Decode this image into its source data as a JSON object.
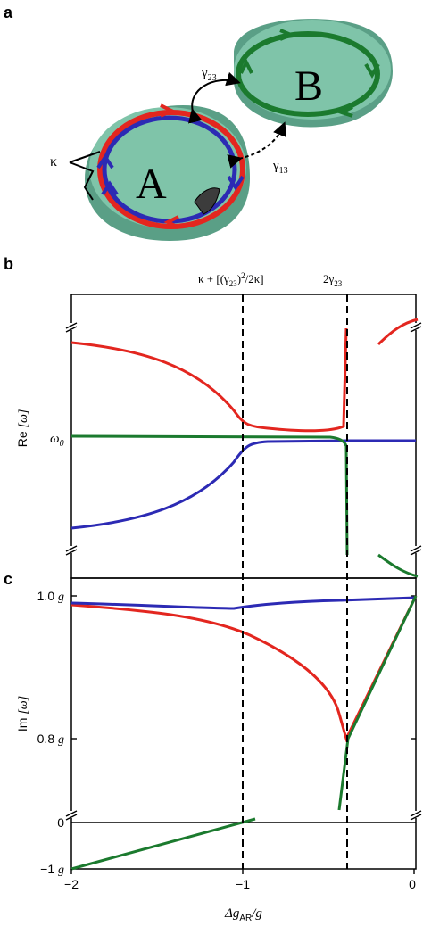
{
  "panel_a": {
    "label": "a",
    "ring_a_label": "A",
    "ring_b_label": "B",
    "gamma23_label": "γ",
    "gamma23_sub": "23",
    "gamma13_label": "γ",
    "gamma13_sub": "13",
    "kappa_label": "κ",
    "colors": {
      "disk": "#7fc4a9",
      "red": "#e3261f",
      "blue": "#2c2ab4",
      "green": "#1b7a2e",
      "dark": "#3c3c3c"
    }
  },
  "panel_b": {
    "label": "b",
    "ylabel_main": "Re ",
    "ylabel_sym": "[ω]",
    "ytick_omega": "ω",
    "ytick_omega_sub": "0",
    "top_annot_1": "κ + [(γ",
    "top_annot_1_sub": "23",
    "top_annot_1_tail": ")",
    "top_annot_1_sup": "2",
    "top_annot_1_end": "/2κ]",
    "top_annot_2": "2γ",
    "top_annot_2_sub": "23"
  },
  "panel_c": {
    "label": "c",
    "ylabel_main": "Im ",
    "ylabel_sym": "[ω]",
    "yticks": [
      "1.0",
      "0.8",
      "0",
      "−1"
    ],
    "ytick_unit": "g"
  },
  "xaxis": {
    "ticks": [
      "−2",
      "−1",
      "0"
    ],
    "label_delta": "Δg",
    "label_sub": "AR",
    "label_tail": "/g"
  },
  "chart_data": {
    "type": "line",
    "xlim": [
      -2,
      0
    ],
    "xlabel": "Δg_AR/g",
    "series": [
      {
        "name": "",
        "color": "#e3261f"
      },
      {
        "name": "",
        "color": "#2c2ab4"
      },
      {
        "name": "",
        "color": "#1b7a2e"
      }
    ],
    "vertical_dashed_lines": [
      -1.0,
      -0.38
    ]
  }
}
